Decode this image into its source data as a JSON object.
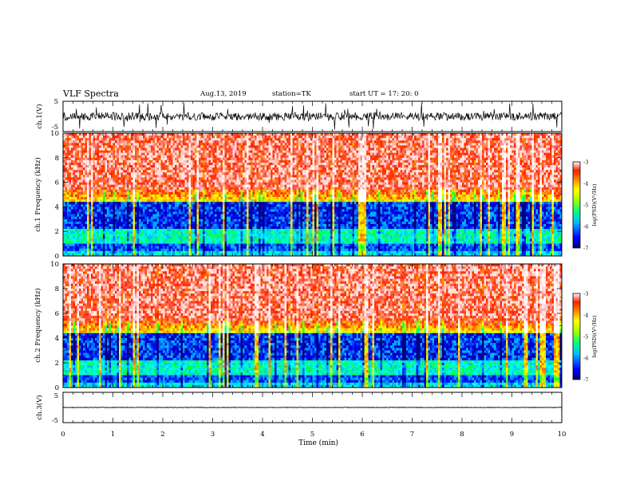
{
  "header": {
    "title": "VLF Spectra",
    "date": "Aug.13, 2019",
    "station": "station=TK",
    "start_ut": "start UT =  17: 20: 0"
  },
  "chart_data": [
    {
      "type": "line",
      "panel": "waveform-ch1",
      "ylabel": "ch.1(V)",
      "ylim": [
        -5,
        5
      ],
      "yticks": [
        "5",
        "-5"
      ],
      "xlim": [
        0,
        10
      ]
    },
    {
      "type": "heatmap",
      "panel": "spectrogram-ch1",
      "ylabel": "ch.1 Frequency (kHz)",
      "ylim": [
        0,
        10
      ],
      "yticks": [
        "0",
        "2",
        "4",
        "6",
        "8",
        "10"
      ],
      "xlim": [
        0,
        10
      ],
      "colorbar": {
        "label": "log(PSD)(V²/Hz)",
        "range": [
          -7,
          -3
        ],
        "ticks": [
          "-3",
          "-4",
          "-5",
          "-6",
          "-7"
        ]
      }
    },
    {
      "type": "heatmap",
      "panel": "spectrogram-ch2",
      "ylabel": "ch.2 Frequency (kHz)",
      "ylim": [
        0,
        10
      ],
      "yticks": [
        "0",
        "2",
        "4",
        "6",
        "8",
        "10"
      ],
      "xlim": [
        0,
        10
      ],
      "colorbar": {
        "label": "log(PSD)(V²/Hz)",
        "range": [
          -7,
          -3
        ],
        "ticks": [
          "-3",
          "-4",
          "-5",
          "-6",
          "-7"
        ]
      }
    },
    {
      "type": "line",
      "panel": "waveform-ch3",
      "ylabel": "ch.3(V)",
      "ylim": [
        -5,
        5
      ],
      "yticks": [
        "5",
        "-5"
      ],
      "xlim": [
        0,
        10
      ],
      "xlabel": "Time (min)",
      "xticks": [
        "0",
        "1",
        "2",
        "3",
        "4",
        "5",
        "6",
        "7",
        "8",
        "9",
        "10"
      ]
    }
  ],
  "colors": {
    "colormap": [
      "#000080",
      "#0000ff",
      "#00a0ff",
      "#00ffff",
      "#00ff40",
      "#a0ff00",
      "#ffff00",
      "#ffa000",
      "#ff2000",
      "#ffd0d0",
      "#ffffff"
    ],
    "axis": "#000000",
    "trace": "#000000"
  }
}
